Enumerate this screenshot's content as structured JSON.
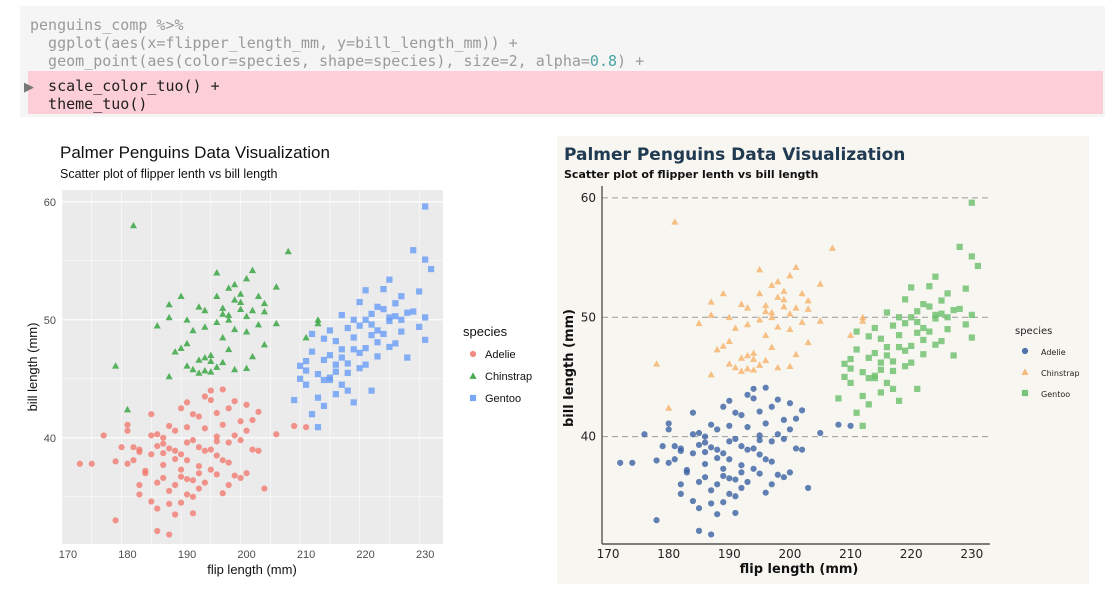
{
  "code": {
    "lines": [
      "penguins_comp %>%",
      "  ggplot(aes(x=flipper_length_mm, y=bill_length_mm)) +",
      "  geom_point(aes(color=species, shape=species), size=2, alpha=",
      "  scale_color_tuo() +",
      "  theme_tuo()"
    ],
    "alpha_value": "0.8",
    "line_end": ") +",
    "run_marker": "▶"
  },
  "chart_data": [
    {
      "type": "scatter",
      "theme": "ggplot2 default (grey panel, white grid)",
      "title": "Palmer Penguins Data Visualization",
      "subtitle": "Scatter plot of flipper lenth vs bill length",
      "xlabel": "flip length (mm)",
      "ylabel": "bill length (mm)",
      "xlim": [
        169,
        233
      ],
      "ylim": [
        31,
        61
      ],
      "xticks": [
        170,
        180,
        190,
        200,
        210,
        220,
        230
      ],
      "yticks": [
        40,
        50,
        60
      ],
      "grid": true,
      "legend": {
        "title": "species",
        "placement": "right"
      },
      "series_ref": "penguins"
    },
    {
      "type": "scatter",
      "theme": "theme_tuo (cream background, dashed horizontal grid)",
      "title": "Palmer Penguins Data Visualization",
      "subtitle": "Scatter plot of flipper lenth vs bill length",
      "xlabel": "flip length (mm)",
      "ylabel": "bill length (mm)",
      "xlim": [
        169,
        233
      ],
      "ylim": [
        31,
        61
      ],
      "xticks": [
        170,
        180,
        190,
        200,
        210,
        220,
        230
      ],
      "yticks": [
        40,
        50,
        60
      ],
      "grid": "horizontal dashed",
      "legend": {
        "title": "species",
        "placement": "right"
      },
      "series_ref": "penguins"
    }
  ],
  "penguins": {
    "left_colors": {
      "Adelie": "#f07e73",
      "Chinstrap": "#33a43d",
      "Gentoo": "#6a9ef5"
    },
    "right_colors": {
      "Adelie": "#3e64a3",
      "Chinstrap": "#f5b26b",
      "Gentoo": "#6cbf6c"
    },
    "shapes": {
      "Adelie": "circle",
      "Chinstrap": "triangle",
      "Gentoo": "square"
    },
    "series": [
      {
        "name": "Adelie",
        "points": [
          [
            172,
            37.8
          ],
          [
            174,
            37.8
          ],
          [
            176,
            40.2
          ],
          [
            178,
            38.0
          ],
          [
            178,
            33.0
          ],
          [
            180,
            37.8
          ],
          [
            180,
            41.1
          ],
          [
            180,
            40.6
          ],
          [
            181,
            39.2
          ],
          [
            181,
            38.1
          ],
          [
            182,
            36.0
          ],
          [
            182,
            39.0
          ],
          [
            182,
            38.8
          ],
          [
            183,
            37.0
          ],
          [
            183,
            37.2
          ],
          [
            184,
            34.6
          ],
          [
            184,
            40.2
          ],
          [
            184,
            38.6
          ],
          [
            185,
            40.3
          ],
          [
            185,
            36.2
          ],
          [
            185,
            39.3
          ],
          [
            185,
            34.0
          ],
          [
            186,
            39.5
          ],
          [
            186,
            38.7
          ],
          [
            186,
            36.6
          ],
          [
            186,
            37.7
          ],
          [
            187,
            39.1
          ],
          [
            187,
            35.5
          ],
          [
            187,
            41.0
          ],
          [
            187,
            34.4
          ],
          [
            188,
            40.6
          ],
          [
            188,
            36.0
          ],
          [
            188,
            38.2
          ],
          [
            188,
            33.5
          ],
          [
            189,
            38.6
          ],
          [
            189,
            42.5
          ],
          [
            189,
            36.7
          ],
          [
            189,
            37.3
          ],
          [
            190,
            39.6
          ],
          [
            190,
            35.2
          ],
          [
            190,
            40.9
          ],
          [
            190,
            38.1
          ],
          [
            190,
            36.5
          ],
          [
            191,
            39.8
          ],
          [
            191,
            36.4
          ],
          [
            191,
            42.0
          ],
          [
            191,
            35.0
          ],
          [
            192,
            39.2
          ],
          [
            192,
            37.6
          ],
          [
            192,
            41.8
          ],
          [
            192,
            35.7
          ],
          [
            193,
            38.9
          ],
          [
            193,
            40.8
          ],
          [
            193,
            36.2
          ],
          [
            194,
            39.0
          ],
          [
            194,
            43.2
          ],
          [
            194,
            37.3
          ],
          [
            195,
            39.7
          ],
          [
            195,
            42.1
          ],
          [
            195,
            36.9
          ],
          [
            195,
            40.1
          ],
          [
            196,
            41.1
          ],
          [
            196,
            38.1
          ],
          [
            196,
            44.1
          ],
          [
            196,
            35.3
          ],
          [
            197,
            39.6
          ],
          [
            197,
            42.5
          ],
          [
            197,
            37.9
          ],
          [
            198,
            40.2
          ],
          [
            198,
            43.1
          ],
          [
            198,
            36.8
          ],
          [
            199,
            41.4
          ],
          [
            199,
            39.8
          ],
          [
            200,
            40.6
          ],
          [
            200,
            42.8
          ],
          [
            200,
            37.0
          ],
          [
            201,
            41.5
          ],
          [
            201,
            39.0
          ],
          [
            202,
            38.9
          ],
          [
            202,
            42.2
          ],
          [
            203,
            35.7
          ],
          [
            205,
            40.3
          ],
          [
            208,
            41.0
          ],
          [
            210,
            40.9
          ],
          [
            179,
            39.2
          ],
          [
            185,
            32.1
          ],
          [
            187,
            31.8
          ],
          [
            190,
            43.0
          ],
          [
            193,
            43.5
          ],
          [
            194,
            44.0
          ],
          [
            184,
            42.0
          ],
          [
            186,
            40.0
          ],
          [
            188,
            38.9
          ],
          [
            182,
            35.2
          ],
          [
            192,
            37.0
          ],
          [
            195,
            38.5
          ],
          [
            197,
            36.0
          ],
          [
            191,
            33.6
          ],
          [
            189,
            34.5
          ],
          [
            199,
            36.6
          ]
        ]
      },
      {
        "name": "Chinstrap",
        "points": [
          [
            178,
            46.1
          ],
          [
            180,
            42.4
          ],
          [
            181,
            58.0
          ],
          [
            185,
            49.5
          ],
          [
            187,
            45.2
          ],
          [
            187,
            51.3
          ],
          [
            189,
            47.6
          ],
          [
            190,
            46.1
          ],
          [
            190,
            50.0
          ],
          [
            191,
            49.1
          ],
          [
            191,
            45.8
          ],
          [
            192,
            45.5
          ],
          [
            192,
            51.1
          ],
          [
            193,
            46.8
          ],
          [
            193,
            49.4
          ],
          [
            193,
            50.8
          ],
          [
            194,
            45.6
          ],
          [
            194,
            46.5
          ],
          [
            195,
            46.0
          ],
          [
            195,
            52.0
          ],
          [
            195,
            49.8
          ],
          [
            196,
            50.5
          ],
          [
            196,
            46.4
          ],
          [
            197,
            52.7
          ],
          [
            197,
            50.4
          ],
          [
            197,
            47.5
          ],
          [
            198,
            51.7
          ],
          [
            198,
            49.2
          ],
          [
            198,
            45.8
          ],
          [
            199,
            50.9
          ],
          [
            199,
            52.2
          ],
          [
            200,
            50.3
          ],
          [
            200,
            49.0
          ],
          [
            200,
            53.5
          ],
          [
            201,
            50.8
          ],
          [
            201,
            46.9
          ],
          [
            202,
            52.0
          ],
          [
            202,
            49.6
          ],
          [
            203,
            51.4
          ],
          [
            203,
            50.7
          ],
          [
            205,
            52.8
          ],
          [
            205,
            49.7
          ],
          [
            207,
            55.8
          ],
          [
            210,
            48.5
          ],
          [
            212,
            50.0
          ],
          [
            212,
            49.7
          ],
          [
            194,
            47.0
          ],
          [
            193,
            45.7
          ],
          [
            196,
            51.0
          ],
          [
            199,
            51.5
          ],
          [
            201,
            54.2
          ],
          [
            198,
            53.0
          ],
          [
            190,
            48.0
          ],
          [
            188,
            47.3
          ],
          [
            197,
            50.0
          ],
          [
            196,
            48.5
          ],
          [
            192,
            46.6
          ],
          [
            189,
            52.0
          ],
          [
            195,
            54.0
          ],
          [
            187,
            50.2
          ],
          [
            203,
            47.9
          ],
          [
            200,
            45.9
          ]
        ]
      },
      {
        "name": "Gentoo",
        "points": [
          [
            208,
            43.2
          ],
          [
            209,
            45.0
          ],
          [
            210,
            44.5
          ],
          [
            210,
            46.5
          ],
          [
            211,
            42.0
          ],
          [
            211,
            47.3
          ],
          [
            212,
            43.4
          ],
          [
            212,
            45.4
          ],
          [
            213,
            44.9
          ],
          [
            213,
            46.6
          ],
          [
            213,
            48.4
          ],
          [
            214,
            47.0
          ],
          [
            214,
            45.1
          ],
          [
            214,
            49.1
          ],
          [
            215,
            46.2
          ],
          [
            215,
            43.7
          ],
          [
            215,
            48.2
          ],
          [
            216,
            46.8
          ],
          [
            216,
            50.4
          ],
          [
            216,
            44.5
          ],
          [
            217,
            45.5
          ],
          [
            217,
            49.3
          ],
          [
            217,
            46.3
          ],
          [
            218,
            48.5
          ],
          [
            218,
            47.5
          ],
          [
            218,
            50.0
          ],
          [
            219,
            45.9
          ],
          [
            219,
            49.5
          ],
          [
            219,
            51.5
          ],
          [
            220,
            47.6
          ],
          [
            220,
            46.2
          ],
          [
            220,
            52.5
          ],
          [
            221,
            48.7
          ],
          [
            221,
            50.5
          ],
          [
            221,
            44.0
          ],
          [
            222,
            49.1
          ],
          [
            222,
            46.9
          ],
          [
            222,
            51.1
          ],
          [
            223,
            48.8
          ],
          [
            223,
            50.9
          ],
          [
            224,
            49.9
          ],
          [
            224,
            47.7
          ],
          [
            224,
            50.2
          ],
          [
            225,
            50.3
          ],
          [
            225,
            48.0
          ],
          [
            225,
            51.4
          ],
          [
            226,
            49.0
          ],
          [
            226,
            52.0
          ],
          [
            227,
            50.6
          ],
          [
            227,
            46.8
          ],
          [
            228,
            55.9
          ],
          [
            228,
            50.7
          ],
          [
            229,
            49.4
          ],
          [
            229,
            52.4
          ],
          [
            230,
            59.6
          ],
          [
            230,
            50.2
          ],
          [
            230,
            55.1
          ],
          [
            231,
            54.3
          ],
          [
            230,
            48.3
          ],
          [
            212,
            40.9
          ],
          [
            217,
            44.0
          ],
          [
            218,
            43.0
          ],
          [
            210,
            45.7
          ],
          [
            214,
            44.9
          ],
          [
            216,
            47.5
          ],
          [
            220,
            50.0
          ],
          [
            223,
            52.6
          ],
          [
            226,
            50.0
          ],
          [
            219,
            47.2
          ],
          [
            221,
            49.6
          ],
          [
            215,
            45.6
          ],
          [
            213,
            42.7
          ],
          [
            209,
            46.1
          ],
          [
            211,
            48.8
          ],
          [
            224,
            53.4
          ],
          [
            222,
            48.1
          ]
        ]
      }
    ]
  }
}
